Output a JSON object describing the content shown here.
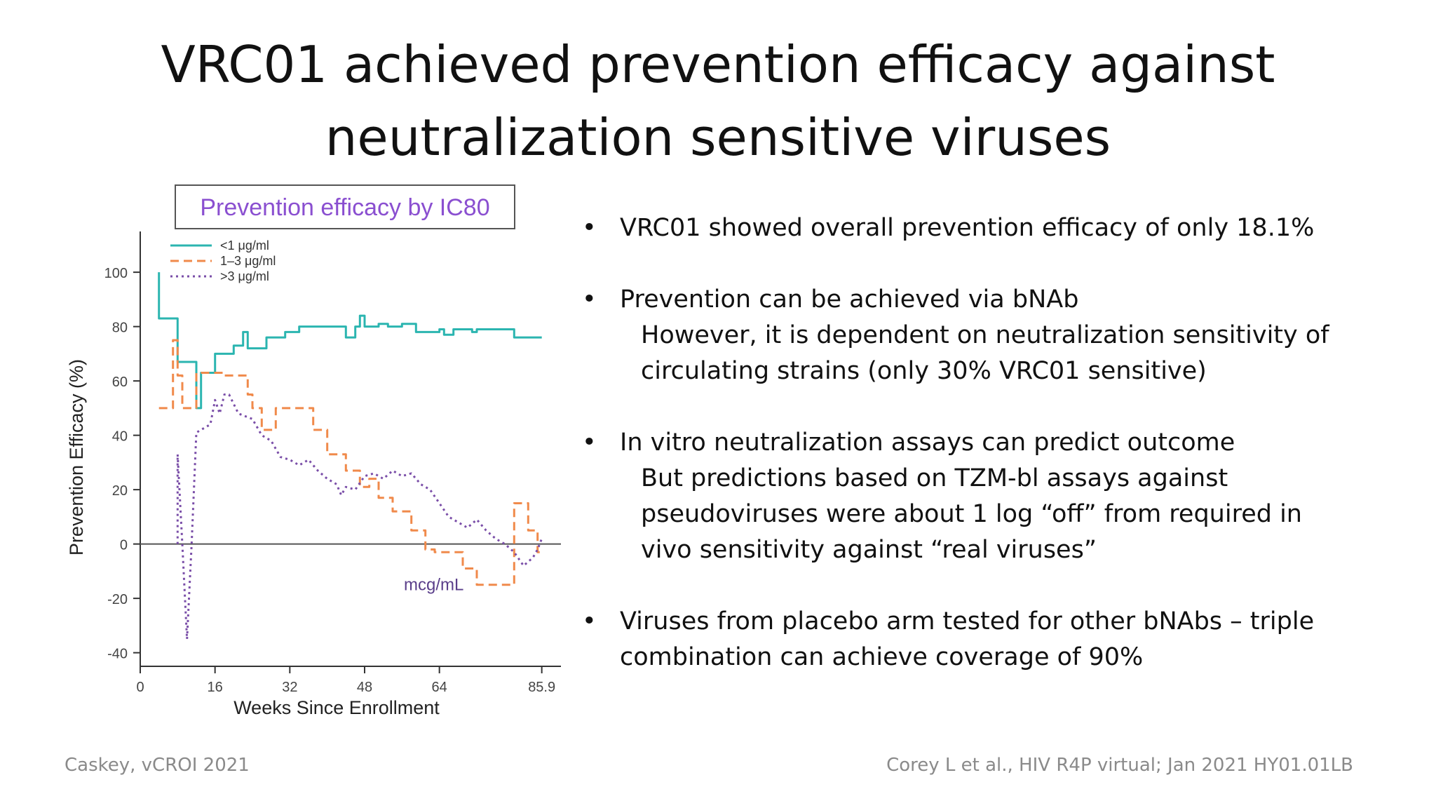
{
  "title": {
    "line1": "VRC01 achieved prevention efficacy against",
    "line2": "neutralization sensitive viruses"
  },
  "bullets": [
    {
      "text": "VRC01 showed overall prevention efficacy of only 18.1%",
      "sub": []
    },
    {
      "text": "Prevention can be achieved via bNAb",
      "sub": [
        "However, it is dependent on neutralization sensitivity of",
        "circulating strains (only 30% VRC01 sensitive)"
      ]
    },
    {
      "text": "In vitro neutralization assays can predict outcome",
      "sub": [
        "But predictions based on TZM-bl assays against",
        "pseudoviruses were about 1 log “off” from required in",
        "vivo sensitivity against “real viruses”"
      ]
    },
    {
      "text": "Viruses from placebo arm tested for other bNAbs – triple",
      "sub": [
        "combination can achieve coverage of 90%"
      ]
    }
  ],
  "footer": {
    "left": "Caskey, vCROI 2021",
    "right": "Corey L et al., HIV R4P virtual; Jan 2021 HY01.01LB"
  },
  "chart_data": {
    "type": "line",
    "title": "Prevention efficacy by IC80",
    "xlabel": "Weeks Since Enrollment",
    "ylabel": "Prevention Efficacy (%)",
    "annotation": "mcg/mL",
    "xlim": [
      0,
      90
    ],
    "ylim": [
      -45,
      115
    ],
    "xticks": [
      "0",
      "16",
      "32",
      "48",
      "64",
      "85.9"
    ],
    "xtick_values": [
      0,
      16,
      32,
      48,
      64,
      85.9
    ],
    "yticks": [
      100,
      80,
      60,
      40,
      20,
      0,
      -20,
      -40
    ],
    "legend_position": "top-left",
    "colors": {
      "s1": "#2bb5b0",
      "s2": "#f08a4b",
      "s3": "#7a4ea8",
      "title": "#8a4fd0",
      "axis": "#333333"
    },
    "series": [
      {
        "name": "<1 μg/ml",
        "style": "solid",
        "points": [
          [
            4,
            100
          ],
          [
            4,
            83
          ],
          [
            8,
            83
          ],
          [
            8,
            67
          ],
          [
            12,
            67
          ],
          [
            12,
            50
          ],
          [
            13,
            50
          ],
          [
            13,
            63
          ],
          [
            16,
            63
          ],
          [
            16,
            70
          ],
          [
            20,
            70
          ],
          [
            20,
            73
          ],
          [
            22,
            73
          ],
          [
            22,
            78
          ],
          [
            23,
            78
          ],
          [
            23,
            72
          ],
          [
            27,
            72
          ],
          [
            27,
            76
          ],
          [
            31,
            76
          ],
          [
            31,
            78
          ],
          [
            34,
            78
          ],
          [
            34,
            80
          ],
          [
            44,
            80
          ],
          [
            44,
            76
          ],
          [
            46,
            76
          ],
          [
            46,
            80
          ],
          [
            47,
            80
          ],
          [
            47,
            84
          ],
          [
            48,
            84
          ],
          [
            48,
            80
          ],
          [
            51,
            80
          ],
          [
            51,
            81
          ],
          [
            53,
            81
          ],
          [
            53,
            80
          ],
          [
            56,
            80
          ],
          [
            56,
            81
          ],
          [
            59,
            81
          ],
          [
            59,
            78
          ],
          [
            64,
            78
          ],
          [
            64,
            79
          ],
          [
            65,
            79
          ],
          [
            65,
            77
          ],
          [
            67,
            77
          ],
          [
            67,
            79
          ],
          [
            71,
            79
          ],
          [
            71,
            78
          ],
          [
            72,
            78
          ],
          [
            72,
            79
          ],
          [
            80,
            79
          ],
          [
            80,
            76
          ],
          [
            85.9,
            76
          ]
        ]
      },
      {
        "name": "1–3 μg/ml",
        "style": "dashed",
        "points": [
          [
            4,
            50
          ],
          [
            7,
            50
          ],
          [
            7,
            75
          ],
          [
            8,
            75
          ],
          [
            8,
            62
          ],
          [
            9,
            62
          ],
          [
            9,
            50
          ],
          [
            12,
            50
          ],
          [
            12,
            63
          ],
          [
            18,
            63
          ],
          [
            18,
            62
          ],
          [
            23,
            62
          ],
          [
            23,
            55
          ],
          [
            24,
            55
          ],
          [
            24,
            50
          ],
          [
            26,
            50
          ],
          [
            26,
            42
          ],
          [
            29,
            42
          ],
          [
            29,
            50
          ],
          [
            37,
            50
          ],
          [
            37,
            42
          ],
          [
            40,
            42
          ],
          [
            40,
            33
          ],
          [
            44,
            33
          ],
          [
            44,
            27
          ],
          [
            47,
            27
          ],
          [
            47,
            21
          ],
          [
            49,
            21
          ],
          [
            49,
            24
          ],
          [
            51,
            24
          ],
          [
            51,
            17
          ],
          [
            54,
            17
          ],
          [
            54,
            12
          ],
          [
            58,
            12
          ],
          [
            58,
            5
          ],
          [
            61,
            5
          ],
          [
            61,
            -2
          ],
          [
            63,
            -2
          ],
          [
            63,
            -3
          ],
          [
            69,
            -3
          ],
          [
            69,
            -9
          ],
          [
            72,
            -9
          ],
          [
            72,
            -15
          ],
          [
            80,
            -15
          ],
          [
            80,
            15
          ],
          [
            83,
            15
          ],
          [
            83,
            5
          ],
          [
            85,
            5
          ],
          [
            85,
            -3
          ],
          [
            85.9,
            -3
          ]
        ]
      },
      {
        "name": ">3 μg/ml",
        "style": "dotted",
        "points": [
          [
            8,
            0
          ],
          [
            8,
            33
          ],
          [
            9,
            0
          ],
          [
            10,
            -35
          ],
          [
            11,
            0
          ],
          [
            12,
            41
          ],
          [
            15,
            44
          ],
          [
            16,
            53
          ],
          [
            17,
            48
          ],
          [
            18,
            55
          ],
          [
            19,
            55
          ],
          [
            21,
            48
          ],
          [
            24,
            46
          ],
          [
            26,
            40
          ],
          [
            28,
            38
          ],
          [
            30,
            32
          ],
          [
            32,
            31
          ],
          [
            34,
            29
          ],
          [
            36,
            31
          ],
          [
            38,
            27
          ],
          [
            40,
            24
          ],
          [
            42,
            22
          ],
          [
            43,
            18
          ],
          [
            44,
            21
          ],
          [
            46,
            20
          ],
          [
            48,
            25
          ],
          [
            50,
            26
          ],
          [
            52,
            24
          ],
          [
            54,
            27
          ],
          [
            56,
            25
          ],
          [
            58,
            26
          ],
          [
            60,
            22
          ],
          [
            62,
            20
          ],
          [
            64,
            15
          ],
          [
            66,
            10
          ],
          [
            68,
            8
          ],
          [
            70,
            6
          ],
          [
            72,
            9
          ],
          [
            74,
            5
          ],
          [
            76,
            2
          ],
          [
            78,
            0
          ],
          [
            80,
            -3
          ],
          [
            82,
            -8
          ],
          [
            84,
            -5
          ],
          [
            85,
            -2
          ],
          [
            85.9,
            2
          ]
        ]
      }
    ]
  }
}
